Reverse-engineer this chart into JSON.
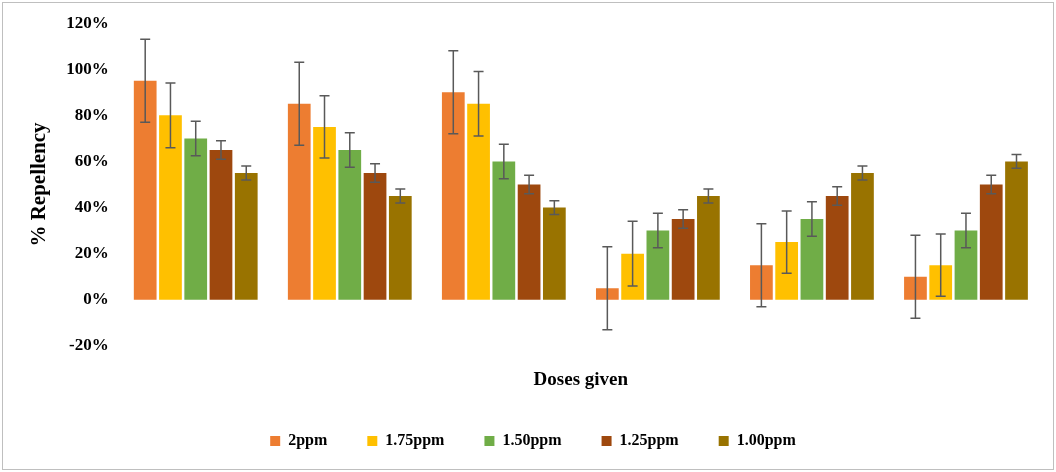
{
  "chart_data": {
    "type": "bar",
    "xlabel": "Doses given",
    "ylabel": "% Repellency",
    "categories": [
      null,
      null,
      null,
      null,
      null,
      null
    ],
    "series": [
      {
        "name": "2ppm",
        "color": "#ed7d31",
        "values": [
          95,
          85,
          90,
          5,
          15,
          10
        ],
        "errors": [
          18,
          18,
          18,
          18,
          18,
          18
        ]
      },
      {
        "name": "1.75ppm",
        "color": "#ffc000",
        "values": [
          80,
          75,
          85,
          20,
          25,
          15
        ],
        "errors": [
          14,
          13.5,
          14,
          14,
          13.5,
          13.5
        ]
      },
      {
        "name": "1.50ppm",
        "color": "#70ad47",
        "values": [
          70,
          65,
          60,
          30,
          35,
          30
        ],
        "errors": [
          7.5,
          7.5,
          7.5,
          7.5,
          7.5,
          7.5
        ]
      },
      {
        "name": "1.25ppm",
        "color": "#9e480e",
        "values": [
          65,
          55,
          50,
          35,
          45,
          50
        ],
        "errors": [
          4,
          4,
          4,
          4,
          4,
          4
        ]
      },
      {
        "name": "1.00ppm",
        "color": "#997300",
        "values": [
          55,
          45,
          40,
          45,
          55,
          60
        ],
        "errors": [
          3,
          3,
          3,
          3,
          3,
          3
        ]
      }
    ],
    "ylim": [
      -20,
      120
    ],
    "yticks": [
      {
        "value": -20,
        "label": "-20%"
      },
      {
        "value": 0,
        "label": "0%"
      },
      {
        "value": 20,
        "label": "20%"
      },
      {
        "value": 40,
        "label": "40%"
      },
      {
        "value": 60,
        "label": "60%"
      },
      {
        "value": 80,
        "label": "80%"
      },
      {
        "value": 100,
        "label": "100%"
      },
      {
        "value": 120,
        "label": "120%"
      }
    ],
    "grid": false,
    "legend": "bottom"
  }
}
